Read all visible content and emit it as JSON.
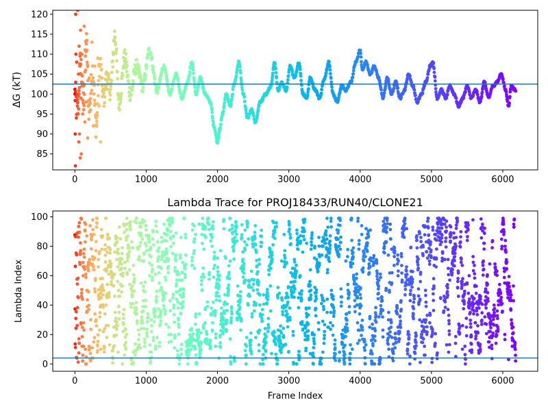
{
  "chart_data": [
    {
      "type": "scatter",
      "title": "",
      "xlabel": "",
      "ylabel": "ΔG (kT)",
      "xlim": [
        -310,
        6490
      ],
      "ylim": [
        81,
        121
      ],
      "xticks": [
        0,
        1000,
        2000,
        3000,
        4000,
        5000,
        6000
      ],
      "yticks": [
        85,
        90,
        95,
        100,
        105,
        110,
        115,
        120
      ],
      "colormap": "rainbow (red at early frames → purple at late frames)",
      "hline": {
        "y": 102.5,
        "color": "#1f77b4"
      },
      "trace_keypoints": {
        "x": [
          0,
          40,
          80,
          120,
          160,
          200,
          250,
          300,
          350,
          400,
          450,
          500,
          560,
          620,
          700,
          780,
          860,
          950,
          1050,
          1150,
          1250,
          1330,
          1420,
          1500,
          1580,
          1640,
          1700,
          1760,
          1830,
          1900,
          1950,
          2000,
          2030,
          2070,
          2120,
          2180,
          2240,
          2300,
          2360,
          2420,
          2480,
          2530,
          2600,
          2680,
          2750,
          2800,
          2850,
          2900,
          2960,
          3020,
          3080,
          3140,
          3200,
          3250,
          3300,
          3370,
          3430,
          3500,
          3560,
          3620,
          3680,
          3740,
          3800,
          3870,
          3940,
          4000,
          4030,
          4080,
          4140,
          4200,
          4260,
          4320,
          4380,
          4440,
          4500,
          4560,
          4620,
          4680,
          4740,
          4800,
          4860,
          4920,
          4980,
          5020,
          5080,
          5140,
          5200,
          5260,
          5320,
          5380,
          5440,
          5500,
          5560,
          5620,
          5680,
          5740,
          5800,
          5860,
          5920,
          5980,
          6040,
          6080,
          6120,
          6180
        ],
        "y": [
          100,
          96,
          108,
          98,
          113,
          96,
          106,
          92,
          108,
          99,
          104,
          101,
          115,
          98,
          109,
          100,
          107,
          102,
          111,
          101,
          107,
          100,
          105,
          99,
          103,
          108,
          100,
          104,
          100,
          98,
          92,
          88,
          91,
          95,
          100,
          97,
          103,
          108,
          100,
          94,
          96,
          93,
          98,
          100,
          102,
          108,
          101,
          103,
          101,
          107,
          104,
          108,
          100,
          99,
          104,
          101,
          99,
          104,
          108,
          100,
          98,
          102,
          101,
          103,
          108,
          111,
          106,
          108,
          105,
          107,
          104,
          99,
          104,
          100,
          103,
          99,
          101,
          105,
          102,
          98,
          100,
          103,
          107,
          108,
          99,
          101,
          99,
          102,
          100,
          97,
          99,
          102,
          99,
          101,
          98,
          103,
          99,
          102,
          103,
          105,
          101,
          97,
          102,
          101
        ]
      },
      "early_scatter": {
        "x": [
          0,
          5,
          8,
          12,
          15,
          20,
          25,
          30,
          35,
          40,
          45,
          50,
          55,
          60,
          65,
          70,
          75,
          80,
          85,
          90,
          95,
          100,
          110,
          120,
          130,
          140,
          150,
          160,
          170,
          180,
          200,
          220,
          240,
          260,
          280,
          300,
          320,
          340,
          360,
          380
        ],
        "y": [
          100,
          90,
          82,
          120,
          110,
          94,
          108,
          100,
          97,
          121,
          95,
          105,
          88,
          112,
          90,
          107,
          84,
          116,
          99,
          85,
          103,
          110,
          95,
          102,
          117,
          93,
          106,
          98,
          111,
          89,
          104,
          96,
          113,
          92,
          107,
          94,
          109,
          97,
          88,
          104
        ]
      }
    },
    {
      "type": "scatter",
      "title": "Lambda Trace for PROJ18433/RUN40/CLONE21",
      "xlabel": "Frame Index",
      "ylabel": "Lambda Index",
      "xlim": [
        -310,
        6490
      ],
      "ylim": [
        -5,
        104
      ],
      "xticks": [
        0,
        1000,
        2000,
        3000,
        4000,
        5000,
        6000
      ],
      "yticks": [
        0,
        20,
        40,
        60,
        80,
        100
      ],
      "colormap": "rainbow (red at early frames → purple at late frames)",
      "hline": {
        "y": 4,
        "color": "#1f77b4"
      },
      "frames": [
        0,
        6200
      ],
      "lambda_range": [
        0,
        99
      ]
    }
  ]
}
